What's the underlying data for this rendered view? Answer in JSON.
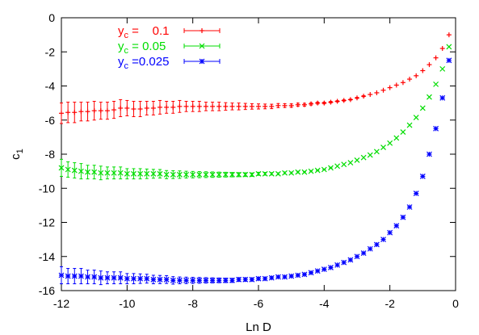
{
  "chart_data": {
    "type": "scatter",
    "title": "",
    "xlabel": "Ln D",
    "ylabel": "c",
    "ylabel_sub": "1",
    "xlim": [
      -12,
      0
    ],
    "ylim": [
      -16,
      0
    ],
    "xticks": [
      "-12",
      "-10",
      "-8",
      "-6",
      "-4",
      "-2",
      "0"
    ],
    "yticks": [
      "0",
      "-2",
      "-4",
      "-6",
      "-8",
      "-10",
      "-12",
      "-14",
      "-16"
    ],
    "grid": false,
    "legend_position": "top-left",
    "series": [
      {
        "name_prefix": "y",
        "name_sub": "c",
        "name_value": "=    0.1",
        "color": "#ff0000",
        "marker": "plus",
        "x": [
          -12.0,
          -11.8,
          -11.6,
          -11.4,
          -11.2,
          -11.0,
          -10.8,
          -10.6,
          -10.4,
          -10.2,
          -10.0,
          -9.8,
          -9.6,
          -9.4,
          -9.2,
          -9.0,
          -8.8,
          -8.6,
          -8.4,
          -8.2,
          -8.0,
          -7.8,
          -7.6,
          -7.4,
          -7.2,
          -7.0,
          -6.8,
          -6.6,
          -6.4,
          -6.2,
          -6.0,
          -5.8,
          -5.6,
          -5.4,
          -5.2,
          -5.0,
          -4.8,
          -4.6,
          -4.4,
          -4.2,
          -4.0,
          -3.8,
          -3.6,
          -3.4,
          -3.2,
          -3.0,
          -2.8,
          -2.6,
          -2.4,
          -2.2,
          -2.0,
          -1.8,
          -1.6,
          -1.4,
          -1.2,
          -1.0,
          -0.8,
          -0.6,
          -0.4,
          -0.2
        ],
        "y": [
          -5.6,
          -5.55,
          -5.55,
          -5.5,
          -5.5,
          -5.45,
          -5.45,
          -5.45,
          -5.4,
          -5.3,
          -5.3,
          -5.35,
          -5.35,
          -5.3,
          -5.3,
          -5.25,
          -5.25,
          -5.25,
          -5.2,
          -5.2,
          -5.2,
          -5.2,
          -5.2,
          -5.2,
          -5.2,
          -5.2,
          -5.2,
          -5.2,
          -5.2,
          -5.2,
          -5.2,
          -5.2,
          -5.2,
          -5.15,
          -5.15,
          -5.15,
          -5.1,
          -5.1,
          -5.05,
          -5.0,
          -5.0,
          -4.95,
          -4.9,
          -4.85,
          -4.8,
          -4.7,
          -4.6,
          -4.5,
          -4.4,
          -4.25,
          -4.1,
          -3.95,
          -3.8,
          -3.6,
          -3.4,
          -3.1,
          -2.75,
          -2.35,
          -1.8,
          -1.0
        ],
        "err": [
          0.6,
          0.6,
          0.6,
          0.55,
          0.55,
          0.55,
          0.5,
          0.5,
          0.5,
          0.5,
          0.45,
          0.45,
          0.45,
          0.4,
          0.4,
          0.4,
          0.35,
          0.35,
          0.35,
          0.3,
          0.3,
          0.3,
          0.25,
          0.25,
          0.25,
          0.22,
          0.2,
          0.2,
          0.18,
          0.16,
          0.15,
          0.14,
          0.13,
          0.12,
          0.11,
          0.1,
          0.09,
          0.08,
          0.07,
          0.06,
          0.05,
          0.05,
          0.04,
          0.04,
          0.03,
          0.03,
          0.03,
          0.02,
          0.02,
          0.02,
          0.02,
          0.02,
          0.02,
          0.01,
          0.01,
          0.01,
          0.01,
          0.01,
          0.01,
          0.01
        ]
      },
      {
        "name_prefix": "y",
        "name_sub": "c",
        "name_value": "= 0.05",
        "color": "#00dd00",
        "marker": "x",
        "x": [
          -12.0,
          -11.8,
          -11.6,
          -11.4,
          -11.2,
          -11.0,
          -10.8,
          -10.6,
          -10.4,
          -10.2,
          -10.0,
          -9.8,
          -9.6,
          -9.4,
          -9.2,
          -9.0,
          -8.8,
          -8.6,
          -8.4,
          -8.2,
          -8.0,
          -7.8,
          -7.6,
          -7.4,
          -7.2,
          -7.0,
          -6.8,
          -6.6,
          -6.4,
          -6.2,
          -6.0,
          -5.8,
          -5.6,
          -5.4,
          -5.2,
          -5.0,
          -4.8,
          -4.6,
          -4.4,
          -4.2,
          -4.0,
          -3.8,
          -3.6,
          -3.4,
          -3.2,
          -3.0,
          -2.8,
          -2.6,
          -2.4,
          -2.2,
          -2.0,
          -1.8,
          -1.6,
          -1.4,
          -1.2,
          -1.0,
          -0.8,
          -0.6,
          -0.4,
          -0.2
        ],
        "y": [
          -8.8,
          -8.9,
          -8.95,
          -9.0,
          -9.05,
          -9.05,
          -9.1,
          -9.1,
          -9.1,
          -9.1,
          -9.15,
          -9.15,
          -9.15,
          -9.15,
          -9.15,
          -9.15,
          -9.2,
          -9.2,
          -9.2,
          -9.2,
          -9.2,
          -9.2,
          -9.2,
          -9.2,
          -9.2,
          -9.2,
          -9.2,
          -9.2,
          -9.2,
          -9.2,
          -9.15,
          -9.15,
          -9.15,
          -9.15,
          -9.1,
          -9.1,
          -9.05,
          -9.05,
          -9.0,
          -8.95,
          -8.9,
          -8.8,
          -8.7,
          -8.6,
          -8.5,
          -8.35,
          -8.2,
          -8.05,
          -7.85,
          -7.6,
          -7.35,
          -7.05,
          -6.7,
          -6.3,
          -5.85,
          -5.3,
          -4.65,
          -3.9,
          -3.0,
          -1.7
        ],
        "err": [
          0.5,
          0.45,
          0.45,
          0.45,
          0.4,
          0.4,
          0.4,
          0.35,
          0.35,
          0.35,
          0.3,
          0.3,
          0.3,
          0.28,
          0.26,
          0.25,
          0.24,
          0.23,
          0.22,
          0.2,
          0.19,
          0.18,
          0.17,
          0.16,
          0.15,
          0.14,
          0.13,
          0.12,
          0.11,
          0.1,
          0.09,
          0.08,
          0.07,
          0.06,
          0.06,
          0.05,
          0.05,
          0.04,
          0.04,
          0.03,
          0.03,
          0.03,
          0.02,
          0.02,
          0.02,
          0.02,
          0.02,
          0.02,
          0.01,
          0.01,
          0.01,
          0.01,
          0.01,
          0.01,
          0.01,
          0.01,
          0.01,
          0.01,
          0.01,
          0.01
        ]
      },
      {
        "name_prefix": "y",
        "name_sub": "c",
        "name_value": "=0.025",
        "color": "#0000ff",
        "marker": "star",
        "x": [
          -12.0,
          -11.8,
          -11.6,
          -11.4,
          -11.2,
          -11.0,
          -10.8,
          -10.6,
          -10.4,
          -10.2,
          -10.0,
          -9.8,
          -9.6,
          -9.4,
          -9.2,
          -9.0,
          -8.8,
          -8.6,
          -8.4,
          -8.2,
          -8.0,
          -7.8,
          -7.6,
          -7.4,
          -7.2,
          -7.0,
          -6.8,
          -6.6,
          -6.4,
          -6.2,
          -6.0,
          -5.8,
          -5.6,
          -5.4,
          -5.2,
          -5.0,
          -4.8,
          -4.6,
          -4.4,
          -4.2,
          -4.0,
          -3.8,
          -3.6,
          -3.4,
          -3.2,
          -3.0,
          -2.8,
          -2.6,
          -2.4,
          -2.2,
          -2.0,
          -1.8,
          -1.6,
          -1.4,
          -1.2,
          -1.0,
          -0.8,
          -0.6,
          -0.4,
          -0.2
        ],
        "y": [
          -15.1,
          -15.15,
          -15.15,
          -15.15,
          -15.2,
          -15.2,
          -15.25,
          -15.25,
          -15.25,
          -15.25,
          -15.3,
          -15.3,
          -15.3,
          -15.3,
          -15.35,
          -15.35,
          -15.35,
          -15.4,
          -15.4,
          -15.4,
          -15.4,
          -15.4,
          -15.4,
          -15.4,
          -15.4,
          -15.4,
          -15.4,
          -15.35,
          -15.35,
          -15.35,
          -15.3,
          -15.3,
          -15.25,
          -15.2,
          -15.2,
          -15.15,
          -15.1,
          -15.05,
          -14.95,
          -14.85,
          -14.75,
          -14.65,
          -14.5,
          -14.35,
          -14.2,
          -14.0,
          -13.8,
          -13.55,
          -13.3,
          -13.0,
          -12.6,
          -12.2,
          -11.7,
          -11.1,
          -10.3,
          -9.3,
          -8.0,
          -6.5,
          -4.7,
          -2.5
        ],
        "err": [
          0.5,
          0.45,
          0.45,
          0.45,
          0.4,
          0.4,
          0.4,
          0.35,
          0.35,
          0.35,
          0.3,
          0.3,
          0.28,
          0.26,
          0.25,
          0.24,
          0.23,
          0.22,
          0.2,
          0.19,
          0.18,
          0.17,
          0.16,
          0.15,
          0.14,
          0.13,
          0.12,
          0.11,
          0.1,
          0.09,
          0.08,
          0.08,
          0.07,
          0.06,
          0.06,
          0.05,
          0.05,
          0.04,
          0.04,
          0.03,
          0.03,
          0.03,
          0.02,
          0.02,
          0.02,
          0.02,
          0.02,
          0.02,
          0.01,
          0.01,
          0.01,
          0.01,
          0.01,
          0.01,
          0.01,
          0.01,
          0.01,
          0.01,
          0.01,
          0.01
        ]
      }
    ]
  }
}
